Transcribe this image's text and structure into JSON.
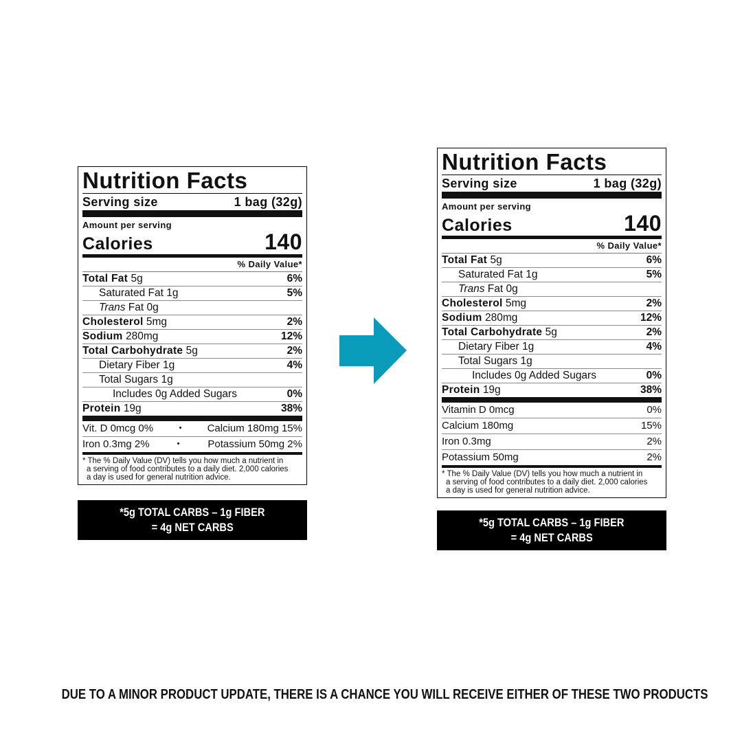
{
  "left_label": {
    "title": "Nutrition Facts",
    "serving_size_label": "Serving size",
    "serving_size_value": "1 bag (32g)",
    "amount_per_serving": "Amount per serving",
    "calories_label": "Calories",
    "calories_value": "140",
    "daily_value_header": "% Daily Value*",
    "rows": [
      {
        "level": 0,
        "name": "Total Fat",
        "amount": "5g",
        "dv": "6%"
      },
      {
        "level": 1,
        "name": "Saturated Fat 1g",
        "dv": "5%"
      },
      {
        "level": 1,
        "italic": "Trans",
        "name": "Fat 0g"
      },
      {
        "level": 0,
        "name": "Cholesterol",
        "amount": "5mg",
        "dv": "2%"
      },
      {
        "level": 0,
        "name": "Sodium",
        "amount": "280mg",
        "dv": "12%"
      },
      {
        "level": 0,
        "name": "Total Carbohydrate",
        "amount": "5g",
        "dv": "2%"
      },
      {
        "level": 1,
        "name": "Dietary Fiber 1g",
        "dv": "4%"
      },
      {
        "level": 1,
        "name": "Total Sugars 1g"
      },
      {
        "level": 2,
        "name": "Includes 0g Added Sugars",
        "dv": "0%"
      },
      {
        "level": 0,
        "name": "Protein",
        "amount": "19g",
        "dv": "38%"
      }
    ],
    "micronutrients": [
      {
        "left": "Vit. D 0mcg 0%",
        "right": "Calcium 180mg 15%"
      },
      {
        "left": "Iron 0.3mg 2%",
        "right": "Potassium 50mg 2%"
      }
    ],
    "footnote": [
      "* The % Daily Value (DV) tells you how much a nutrient in",
      "a serving of food contributes to a daily diet. 2,000 calories",
      "a day is used for general nutrition advice."
    ],
    "callout": [
      "*5g TOTAL CARBS – 1g FIBER",
      "= 4g NET CARBS"
    ]
  },
  "right_label": {
    "title": "Nutrition Facts",
    "serving_size_label": "Serving size",
    "serving_size_value": "1 bag (32g)",
    "amount_per_serving": "Amount per serving",
    "calories_label": "Calories",
    "calories_value": "140",
    "daily_value_header": "% Daily Value*",
    "rows": [
      {
        "level": 0,
        "name": "Total Fat",
        "amount": "5g",
        "dv": "6%"
      },
      {
        "level": 1,
        "name": "Saturated Fat 1g",
        "dv": "5%"
      },
      {
        "level": 1,
        "italic": "Trans",
        "name": "Fat 0g"
      },
      {
        "level": 0,
        "name": "Cholesterol",
        "amount": "5mg",
        "dv": "2%"
      },
      {
        "level": 0,
        "name": "Sodium",
        "amount": "280mg",
        "dv": "12%"
      },
      {
        "level": 0,
        "name": "Total Carbohydrate",
        "amount": "5g",
        "dv": "2%"
      },
      {
        "level": 1,
        "name": "Dietary Fiber 1g",
        "dv": "4%"
      },
      {
        "level": 1,
        "name": "Total Sugars 1g"
      },
      {
        "level": 2,
        "name": "Includes 0g Added Sugars",
        "dv": "0%"
      },
      {
        "level": 0,
        "name": "Protein",
        "amount": "19g",
        "dv": "38%"
      }
    ],
    "micronutrients": [
      {
        "name": "Vitamin D 0mcg",
        "dv": "0%"
      },
      {
        "name": "Calcium 180mg",
        "dv": "15%"
      },
      {
        "name": "Iron 0.3mg",
        "dv": "2%"
      },
      {
        "name": "Potassium 50mg",
        "dv": "2%"
      }
    ],
    "footnote": [
      "* The % Daily Value (DV) tells you how much a nutrient in",
      "a serving of food contributes to a daily diet. 2,000 calories",
      "a day is used for general nutrition advice."
    ],
    "callout": [
      "*5g TOTAL CARBS – 1g FIBER",
      "= 4g NET CARBS"
    ]
  },
  "notice": "DUE TO A MINOR PRODUCT UPDATE, THERE IS A CHANCE YOU WILL RECEIVE EITHER OF THESE TWO PRODUCTS"
}
